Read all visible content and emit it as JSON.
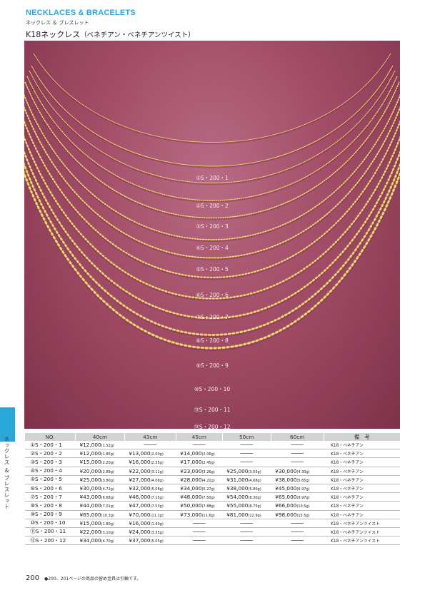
{
  "header": {
    "category_en": "NECKLACES & BRACELETS",
    "category_jp": "ネックレス ＆ ブレスレット"
  },
  "title": {
    "main": "K18ネックレス",
    "sub": "（ベネチアン・ベネチアンツイスト）"
  },
  "chain_labels": [
    "①S・200・1",
    "②S・200・2",
    "③S・200・3",
    "④S・200・4",
    "⑤S・200・5",
    "⑥S・200・6",
    "⑦S・200・7",
    "⑧S・200・8",
    "⑨S・200・9",
    "⑩S・200・10",
    "⑪S・200・11",
    "⑫S・200・12"
  ],
  "side_label": "ネックレス ＆ ブレスレット",
  "table": {
    "headers": [
      "NO.",
      "40cm",
      "43cm",
      "45cm",
      "50cm",
      "60cm",
      "備　考"
    ],
    "rows": [
      {
        "no": "①S・200・1",
        "c40": {
          "p": "¥12,000",
          "w": "(1.52g)"
        },
        "c43": null,
        "c45": null,
        "c50": null,
        "c60": null,
        "note": "K18・ベネチアン"
      },
      {
        "no": "②S・200・2",
        "c40": {
          "p": "¥12,000",
          "w": "(1.85g)"
        },
        "c43": {
          "p": "¥13,000",
          "w": "(2.00g)"
        },
        "c45": {
          "p": "¥14,000",
          "w": "(2.06g)"
        },
        "c50": null,
        "c60": null,
        "note": "K18・ベネチアン"
      },
      {
        "no": "③S・200・3",
        "c40": {
          "p": "¥15,000",
          "w": "(2.20g)"
        },
        "c43": {
          "p": "¥16,000",
          "w": "(2.35g)"
        },
        "c45": {
          "p": "¥17,000",
          "w": "(2.45g)"
        },
        "c50": null,
        "c60": null,
        "note": "K18・ベネチアン"
      },
      {
        "no": "④S・200・4",
        "c40": {
          "p": "¥20,000",
          "w": "(2.89g)"
        },
        "c43": {
          "p": "¥22,000",
          "w": "(3.11g)"
        },
        "c45": {
          "p": "¥23,000",
          "w": "(3.26g)"
        },
        "c50": {
          "p": "¥25,000",
          "w": "(3.55g)"
        },
        "c60": {
          "p": "¥30,000",
          "w": "(4.30g)"
        },
        "note": "K18・ベネチアン"
      },
      {
        "no": "⑤S・200・5",
        "c40": {
          "p": "¥25,000",
          "w": "(3.80g)"
        },
        "c43": {
          "p": "¥27,000",
          "w": "(4.08g)"
        },
        "c45": {
          "p": "¥28,000",
          "w": "(4.21g)"
        },
        "c50": {
          "p": "¥31,000",
          "w": "(4.68g)"
        },
        "c60": {
          "p": "¥38,000",
          "w": "(5.65g)"
        },
        "note": "K18・ベネチアン"
      },
      {
        "no": "⑥S・200・6",
        "c40": {
          "p": "¥30,000",
          "w": "(4.72g)"
        },
        "c43": {
          "p": "¥32,000",
          "w": "(5.08g)"
        },
        "c45": {
          "p": "¥34,000",
          "w": "(5.27g)"
        },
        "c50": {
          "p": "¥38,000",
          "w": "(5.80g)"
        },
        "c60": {
          "p": "¥45,000",
          "w": "(6.97g)"
        },
        "note": "K18・ベネチアン"
      },
      {
        "no": "⑦S・200・7",
        "c40": {
          "p": "¥43,000",
          "w": "(6.68g)"
        },
        "c43": {
          "p": "¥46,000",
          "w": "(7.15g)"
        },
        "c45": {
          "p": "¥48,000",
          "w": "(7.50g)"
        },
        "c50": {
          "p": "¥54,000",
          "w": "(8.30g)"
        },
        "c60": {
          "p": "¥65,000",
          "w": "(9.97g)"
        },
        "note": "K18・ベネチアン"
      },
      {
        "no": "⑧S・200・8",
        "c40": {
          "p": "¥44,000",
          "w": "(7.01g)"
        },
        "c43": {
          "p": "¥47,000",
          "w": "(7.53g)"
        },
        "c45": {
          "p": "¥50,000",
          "w": "(7.88g)"
        },
        "c50": {
          "p": "¥55,000",
          "w": "(8.75g)"
        },
        "c60": {
          "p": "¥66,000",
          "w": "(10.5g)"
        },
        "note": "K18・ベネチアン"
      },
      {
        "no": "⑨S・200・9",
        "c40": {
          "p": "¥65,000",
          "w": "(10.3g)"
        },
        "c43": {
          "p": "¥70,000",
          "w": "(11.1g)"
        },
        "c45": {
          "p": "¥73,000",
          "w": "(11.6g)"
        },
        "c50": {
          "p": "¥81,000",
          "w": "(12.9g)"
        },
        "c60": {
          "p": "¥98,000",
          "w": "(15.5g)"
        },
        "note": "K18・ベネチアン"
      },
      {
        "no": "⑩S・200・10",
        "c40": {
          "p": "¥15,000",
          "w": "(1.80g)"
        },
        "c43": {
          "p": "¥16,000",
          "w": "(1.90g)"
        },
        "c45": null,
        "c50": null,
        "c60": null,
        "note": "K18・ベネチアンツイスト"
      },
      {
        "no": "⑪S・200・11",
        "c40": {
          "p": "¥22,000",
          "w": "(3.10g)"
        },
        "c43": {
          "p": "¥24,000",
          "w": "(3.35g)"
        },
        "c45": null,
        "c50": null,
        "c60": null,
        "note": "K18・ベネチアンツイスト"
      },
      {
        "no": "⑫S・200・12",
        "c40": {
          "p": "¥34,000",
          "w": "(4.70g)"
        },
        "c43": {
          "p": "¥37,000",
          "w": "(5.05g)"
        },
        "c45": null,
        "c50": null,
        "c60": null,
        "note": "K18・ベネチアンツイスト"
      }
    ]
  },
  "footer": {
    "page_number": "200",
    "note": "●200、201ページの商品の留め金具は引輪です。"
  },
  "colors": {
    "accent": "#2aa6d8",
    "backdrop": "#a24d68",
    "gold": "#e8c254"
  }
}
